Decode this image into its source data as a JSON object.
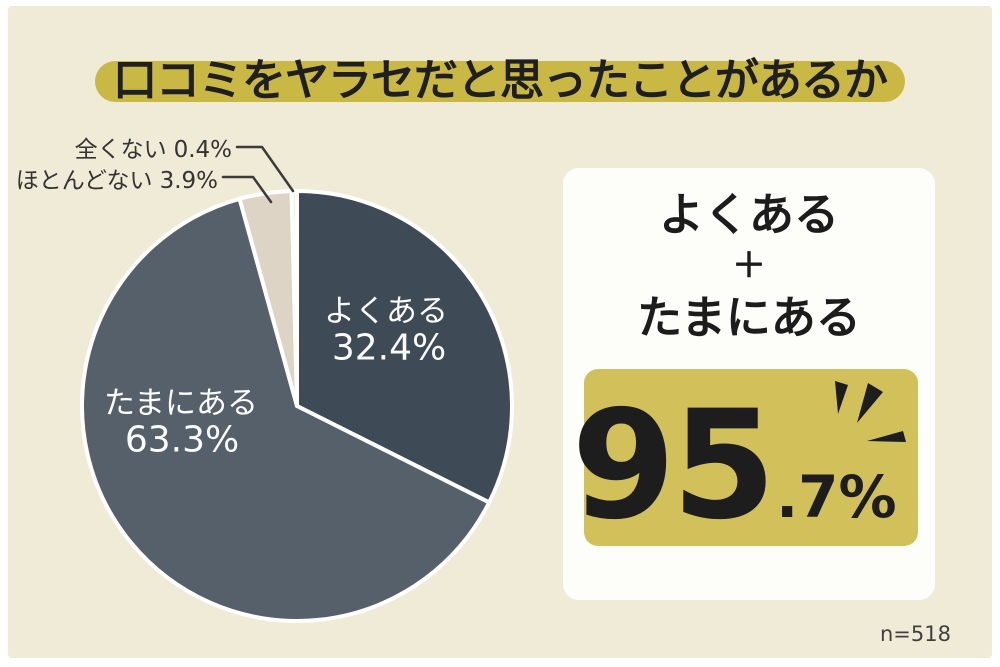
{
  "title": {
    "text": "口コミをヤラセだと思ったことがあるか"
  },
  "chart_data": {
    "type": "pie",
    "title": "口コミをヤラセだと思ったことがあるか",
    "categories": [
      "よくある",
      "たまにある",
      "ほとんどない",
      "全くない"
    ],
    "values": [
      32.4,
      63.3,
      3.9,
      0.4
    ],
    "unit": "%",
    "start_angle": "12 o'clock, clockwise",
    "legend_position": "labels on/beside slices",
    "sample_size": "n=518",
    "slices": [
      {
        "label": "よくある",
        "value": 32.4,
        "display": "32.4%",
        "color": "#3e4a55"
      },
      {
        "label": "たまにある",
        "value": 63.3,
        "display": "63.3%",
        "color": "#56606b"
      },
      {
        "label": "ほとんどない",
        "value": 3.9,
        "display": "3.9%",
        "color": "#ded4c6"
      },
      {
        "label": "全くない",
        "value": 0.4,
        "display": "0.4%",
        "color": "#f4efe3"
      }
    ]
  },
  "summary_card": {
    "line1": "よくある",
    "plus": "＋",
    "line2": "たまにある",
    "value_main": "95",
    "value_suffix": ".7%"
  },
  "footer": {
    "sample_size": "n=518"
  },
  "colors": {
    "background": "#f0ebd6",
    "frame": "#ffffff",
    "title_highlight": "#c9b843",
    "value_box": "#d2c05a",
    "card": "#fdfdfa",
    "slice_dark": "#3e4a55",
    "slice_medium": "#56606b",
    "slice_beige": "#ded4c6"
  }
}
